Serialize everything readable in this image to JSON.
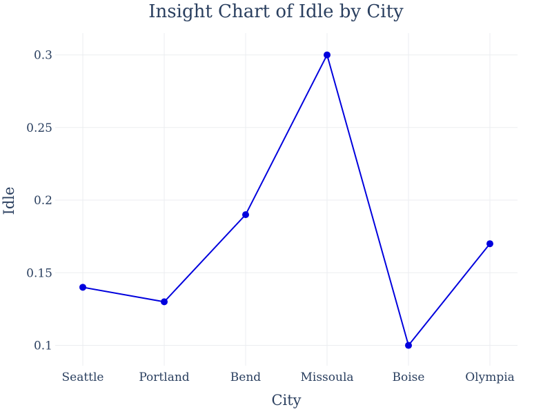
{
  "chart_data": {
    "type": "line",
    "title": "Insight Chart of Idle by City",
    "xlabel": "City",
    "ylabel": "Idle",
    "categories": [
      "Seattle",
      "Portland",
      "Bend",
      "Missoula",
      "Boise",
      "Olympia"
    ],
    "series": [
      {
        "values": [
          0.14,
          0.13,
          0.19,
          0.3,
          0.1,
          0.17
        ]
      }
    ],
    "ylim": [
      0.086,
      0.315
    ],
    "yticks": [
      0.1,
      0.15,
      0.2,
      0.25,
      0.3
    ],
    "ytick_labels": [
      "0.1",
      "0.15",
      "0.2",
      "0.25",
      "0.3"
    ],
    "grid": true,
    "markers": true,
    "colors": {
      "line": "#0000dd",
      "text": "#2a3f5f",
      "grid": "#ebedf0"
    }
  }
}
